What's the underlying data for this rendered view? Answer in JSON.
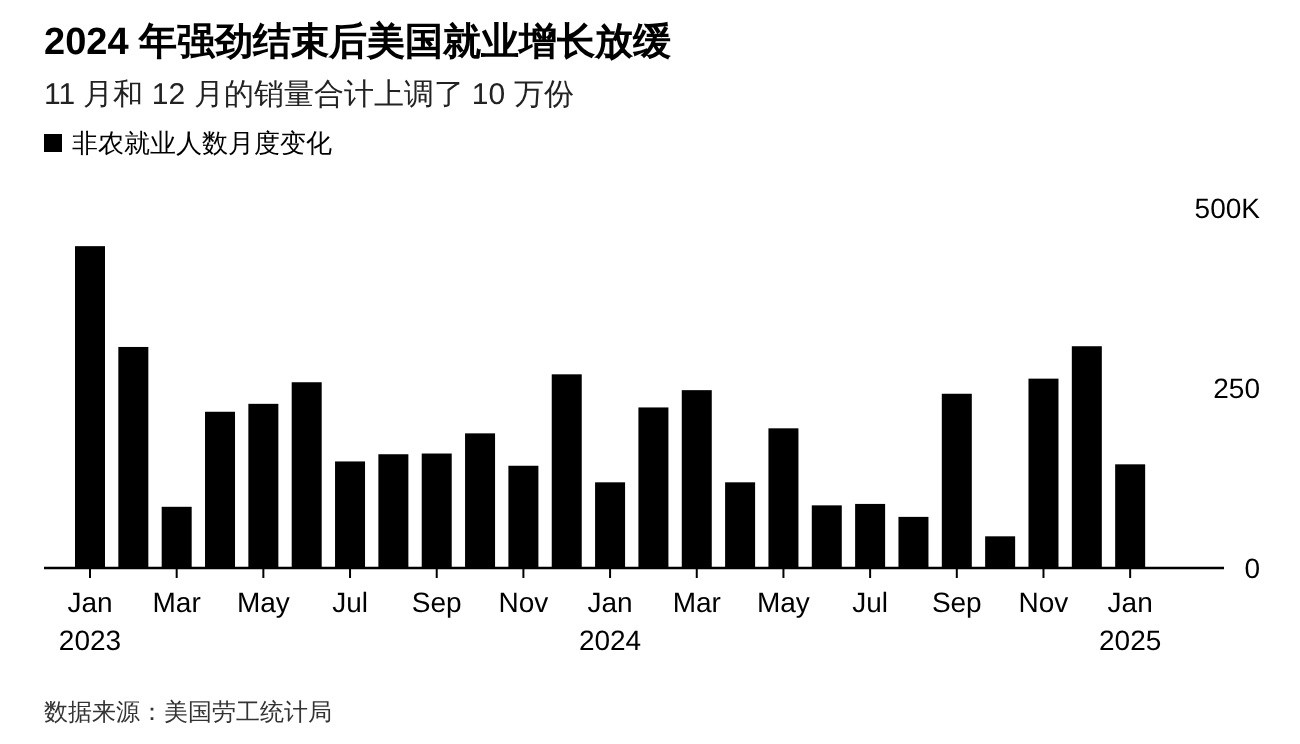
{
  "chart_data": {
    "type": "bar",
    "title": "2024 年强劲结束后美国就业增长放缓",
    "subtitle": "11 月和 12 月的销量合计上调了 10 万份",
    "categories": [
      "Jan 2023",
      null,
      "Mar",
      null,
      "May",
      null,
      "Jul",
      null,
      "Sep",
      null,
      "Nov",
      null,
      "Jan 2024",
      null,
      "Mar",
      null,
      "May",
      null,
      "Jul",
      null,
      "Sep",
      null,
      "Nov",
      null,
      "Jan 2025"
    ],
    "series": [
      {
        "name": "非农就业人数月度变化",
        "color": "#000000",
        "values": [
          447,
          307,
          85,
          217,
          228,
          258,
          148,
          158,
          159,
          187,
          142,
          269,
          119,
          223,
          247,
          119,
          194,
          87,
          89,
          71,
          242,
          44,
          263,
          308,
          144
        ]
      }
    ],
    "ylim": [
      0,
      500
    ],
    "yticks": [
      0,
      250,
      {
        "value": 500,
        "label": "500K"
      }
    ],
    "grid": false,
    "legend": "top left",
    "annotations": [
      "数据来源：美国劳工统计局"
    ]
  }
}
